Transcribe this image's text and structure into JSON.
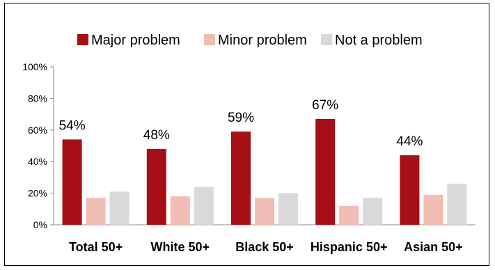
{
  "chart_data": {
    "type": "bar",
    "categories": [
      "Total 50+",
      "White 50+",
      "Black 50+",
      "Hispanic 50+",
      "Asian 50+"
    ],
    "series": [
      {
        "name": "Major problem",
        "values": [
          54,
          48,
          59,
          67,
          44
        ],
        "color": "#A50F15"
      },
      {
        "name": "Minor problem",
        "values": [
          17,
          18,
          17,
          12,
          19
        ],
        "color": "#F2BDB5"
      },
      {
        "name": "Not a problem",
        "values": [
          21,
          24,
          20,
          17,
          26
        ],
        "color": "#D9D9D9"
      }
    ],
    "data_labels": [
      "54%",
      "48%",
      "59%",
      "67%",
      "44%"
    ],
    "y_ticks": [
      "0%",
      "20%",
      "40%",
      "60%",
      "80%",
      "100%"
    ],
    "ylim": [
      0,
      100
    ],
    "grid": false,
    "legend_position": "top"
  }
}
